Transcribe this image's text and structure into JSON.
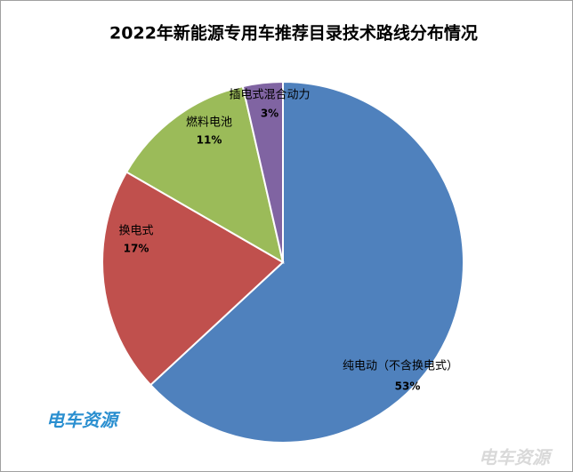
{
  "chart_data": {
    "type": "pie",
    "title": "2022年新能源专用车推荐目录技术路线分布情况",
    "categories": [
      "纯电动（不含换电式）",
      "换电式",
      "燃料电池",
      "插电式混合动力"
    ],
    "values": [
      53,
      17,
      11,
      3
    ],
    "value_labels": [
      "53%",
      "17%",
      "11%",
      "3%"
    ],
    "colors": [
      "#4f81bd",
      "#c0504d",
      "#9bbb59",
      "#8064a2"
    ]
  },
  "watermarks": [
    "电车资源",
    "电车资源"
  ]
}
